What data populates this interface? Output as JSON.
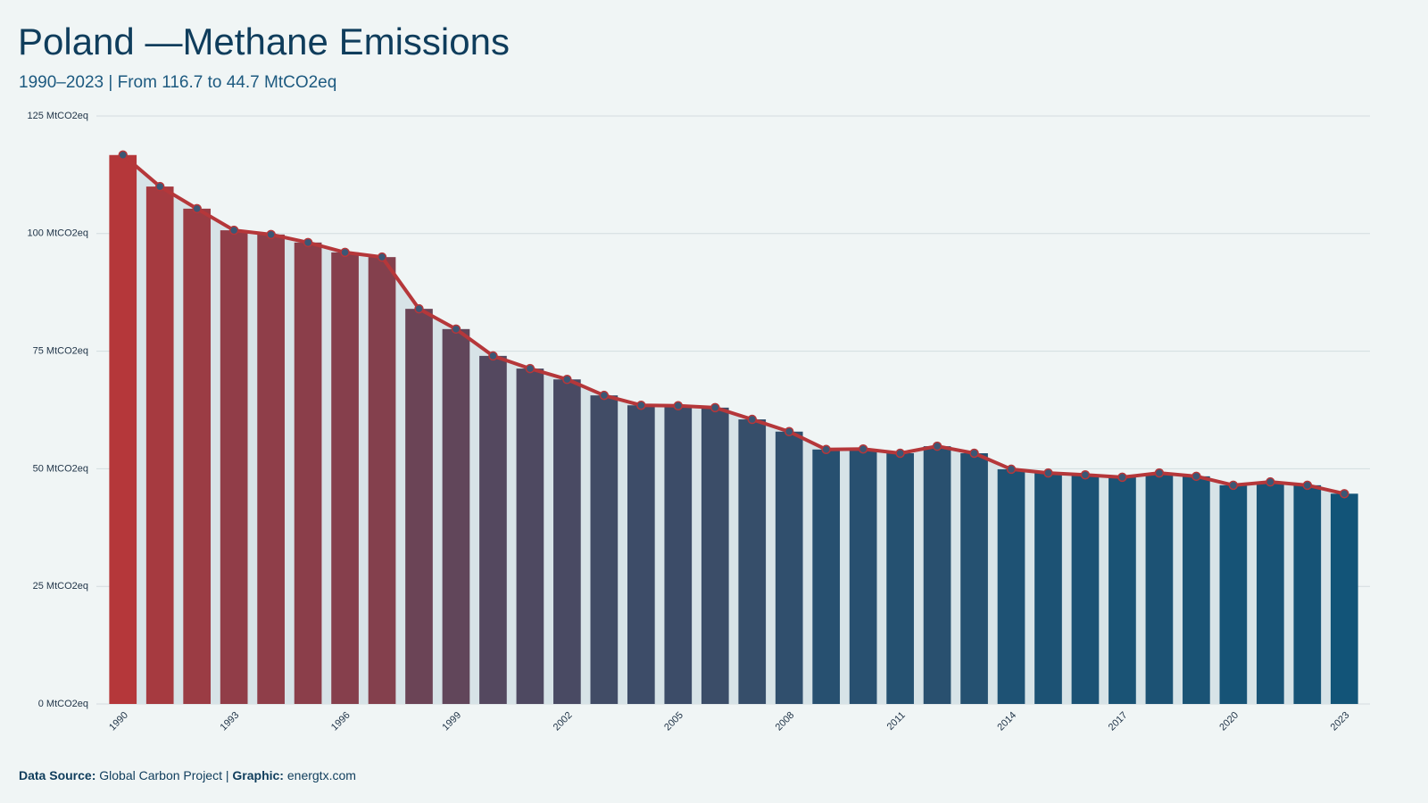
{
  "chart_data": {
    "type": "bar",
    "title": "Poland —Methane Emissions",
    "subtitle": "1990–2023 | From 116.7 to 44.7 MtCO2eq",
    "footer": {
      "source_label": "Data Source:",
      "source": "Global Carbon Project |",
      "graphic_label": "Graphic:",
      "graphic": "energtx.com"
    },
    "categories": [
      "1990",
      null,
      null,
      "1993",
      null,
      null,
      "1996",
      null,
      null,
      "1999",
      null,
      null,
      "2002",
      null,
      null,
      "2005",
      null,
      null,
      "2008",
      null,
      null,
      "2011",
      null,
      null,
      "2014",
      null,
      null,
      "2017",
      null,
      null,
      "2020",
      null,
      null,
      "2023"
    ],
    "values": [
      116.7,
      110.0,
      105.3,
      100.7,
      99.8,
      98.1,
      96.0,
      95.0,
      84.0,
      79.7,
      74.0,
      71.3,
      69.0,
      65.6,
      63.5,
      63.4,
      63.0,
      60.5,
      57.9,
      54.1,
      54.2,
      53.3,
      54.8,
      53.3,
      49.9,
      49.1,
      48.7,
      48.2,
      49.1,
      48.4,
      46.5,
      47.2,
      46.5,
      44.7
    ],
    "color_scale": [
      "#125478",
      "#b5373a"
    ],
    "line_color": "#b5373a",
    "marker_color": "#3b5775",
    "area_color": "#d7e3e7",
    "ylim": [
      0,
      125
    ],
    "yticks": [
      {
        "value": 0,
        "label": "0 MtCO2eq"
      },
      {
        "value": 25,
        "label": "25 MtCO2eq"
      },
      {
        "value": 50,
        "label": "50 MtCO2eq"
      },
      {
        "value": 75,
        "label": "75 MtCO2eq"
      },
      {
        "value": 100,
        "label": "100 MtCO2eq"
      },
      {
        "value": 125,
        "label": "125 MtCO2eq"
      }
    ],
    "grid": true
  }
}
